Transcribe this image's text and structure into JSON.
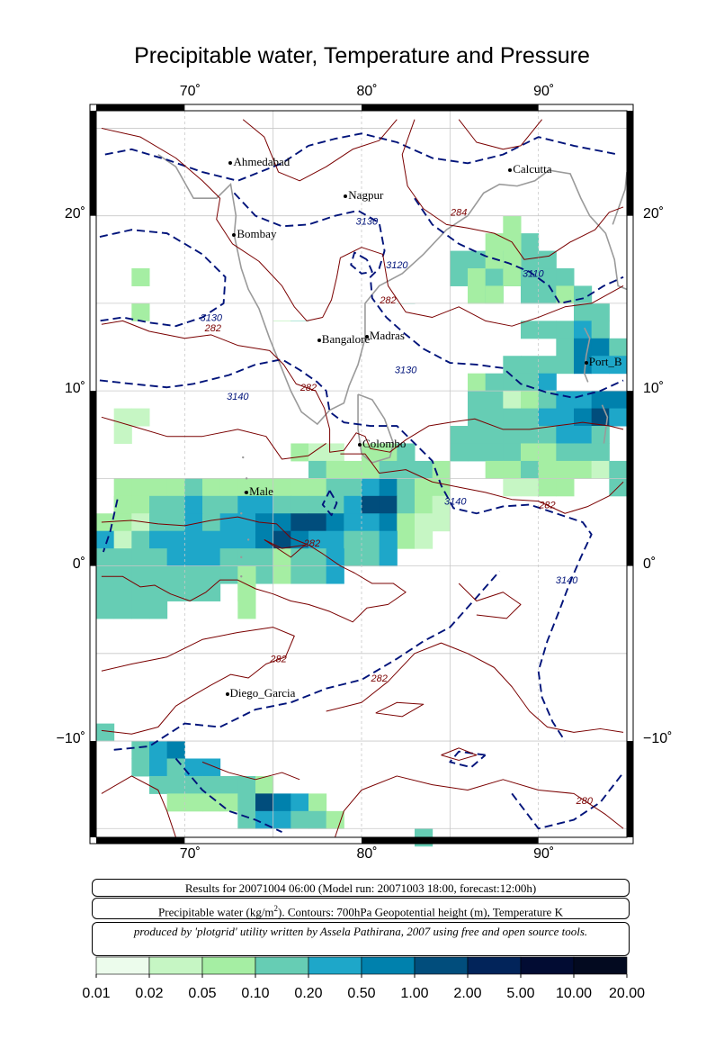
{
  "title": "Precipitable water, Temperature and Pressure",
  "map": {
    "lon_range": [
      65,
      95
    ],
    "lat_range": [
      -15.5,
      26
    ],
    "lon_ticks": [
      {
        "value": 70,
        "label": "70˚"
      },
      {
        "value": 80,
        "label": "80˚"
      },
      {
        "value": 90,
        "label": "90˚"
      }
    ],
    "lat_ticks": [
      {
        "value": 20,
        "label": "20˚"
      },
      {
        "value": 10,
        "label": "10˚"
      },
      {
        "value": 0,
        "label": "0˚"
      },
      {
        "value": -10,
        "label": "−10˚"
      }
    ],
    "cities": [
      {
        "name": "Ahmedabad",
        "lon": 72.6,
        "lat": 23.0
      },
      {
        "name": "Nagpur",
        "lon": 79.1,
        "lat": 21.1
      },
      {
        "name": "Calcutta",
        "lon": 88.4,
        "lat": 22.6
      },
      {
        "name": "Bombay",
        "lon": 72.8,
        "lat": 18.9
      },
      {
        "name": "Bangalore",
        "lon": 77.6,
        "lat": 12.9
      },
      {
        "name": "Madras",
        "lon": 80.3,
        "lat": 13.1
      },
      {
        "name": "Port_B",
        "lon": 92.7,
        "lat": 11.6
      },
      {
        "name": "Colombo",
        "lon": 79.9,
        "lat": 6.9
      },
      {
        "name": "Male",
        "lon": 73.5,
        "lat": 4.2
      },
      {
        "name": "Diego_Garcia",
        "lon": 72.4,
        "lat": -7.3
      }
    ],
    "contour_labels": [
      {
        "text": "3130",
        "lon": 71.5,
        "lat": 14.0,
        "kind": "height"
      },
      {
        "text": "282",
        "lon": 71.6,
        "lat": 13.4,
        "kind": "temp"
      },
      {
        "text": "3140",
        "lon": 73.0,
        "lat": 9.5,
        "kind": "height"
      },
      {
        "text": "282",
        "lon": 77.0,
        "lat": 10.0,
        "kind": "temp"
      },
      {
        "text": "3130",
        "lon": 80.3,
        "lat": 19.5,
        "kind": "height"
      },
      {
        "text": "282",
        "lon": 81.5,
        "lat": 15.0,
        "kind": "temp"
      },
      {
        "text": "3120",
        "lon": 82.0,
        "lat": 17.0,
        "kind": "height"
      },
      {
        "text": "3130",
        "lon": 82.5,
        "lat": 11.0,
        "kind": "height"
      },
      {
        "text": "284",
        "lon": 85.5,
        "lat": 20.0,
        "kind": "temp"
      },
      {
        "text": "3110",
        "lon": 89.7,
        "lat": 16.5,
        "kind": "height"
      },
      {
        "text": "3140",
        "lon": 85.3,
        "lat": 3.5,
        "kind": "height"
      },
      {
        "text": "282",
        "lon": 90.5,
        "lat": 3.3,
        "kind": "temp"
      },
      {
        "text": "282",
        "lon": 77.2,
        "lat": 1.1,
        "kind": "temp"
      },
      {
        "text": "3140",
        "lon": 91.6,
        "lat": -1.0,
        "kind": "height"
      },
      {
        "text": "282",
        "lon": 75.3,
        "lat": -5.5,
        "kind": "temp"
      },
      {
        "text": "282",
        "lon": 81.0,
        "lat": -6.6,
        "kind": "temp"
      },
      {
        "text": "280",
        "lon": 92.6,
        "lat": -13.6,
        "kind": "temp"
      }
    ]
  },
  "info_lines": {
    "line1": "Results for 20071004 06:00 (Model run: 20071003 18:00, forecast:12:00h)",
    "line2_pre": "Precipitable water (kg/m",
    "line2_sup": "2",
    "line2_post": ").  Contours: 700hPa Geopotential height (m), Temperature K",
    "line3": "produced by 'plotgrid' utility written by Assela Pathirana, 2007 using free and open source tools."
  },
  "colorbar": {
    "labels": [
      "0.01",
      "0.02",
      "0.05",
      "0.10",
      "0.20",
      "0.50",
      "1.00",
      "2.00",
      "5.00",
      "10.00",
      "20.00"
    ],
    "colors": [
      "#ecfcec",
      "#c6f6c4",
      "#a5eea3",
      "#66cdb4",
      "#1ea7c9",
      "#0081ad",
      "#014d7c",
      "#02245a",
      "#020c33",
      "#030a20"
    ]
  },
  "colors": {
    "height_contour": "#00137a",
    "temp_contour": "#7a0000",
    "coast": "#9a9a9a",
    "grid": "#c8c8c8"
  }
}
